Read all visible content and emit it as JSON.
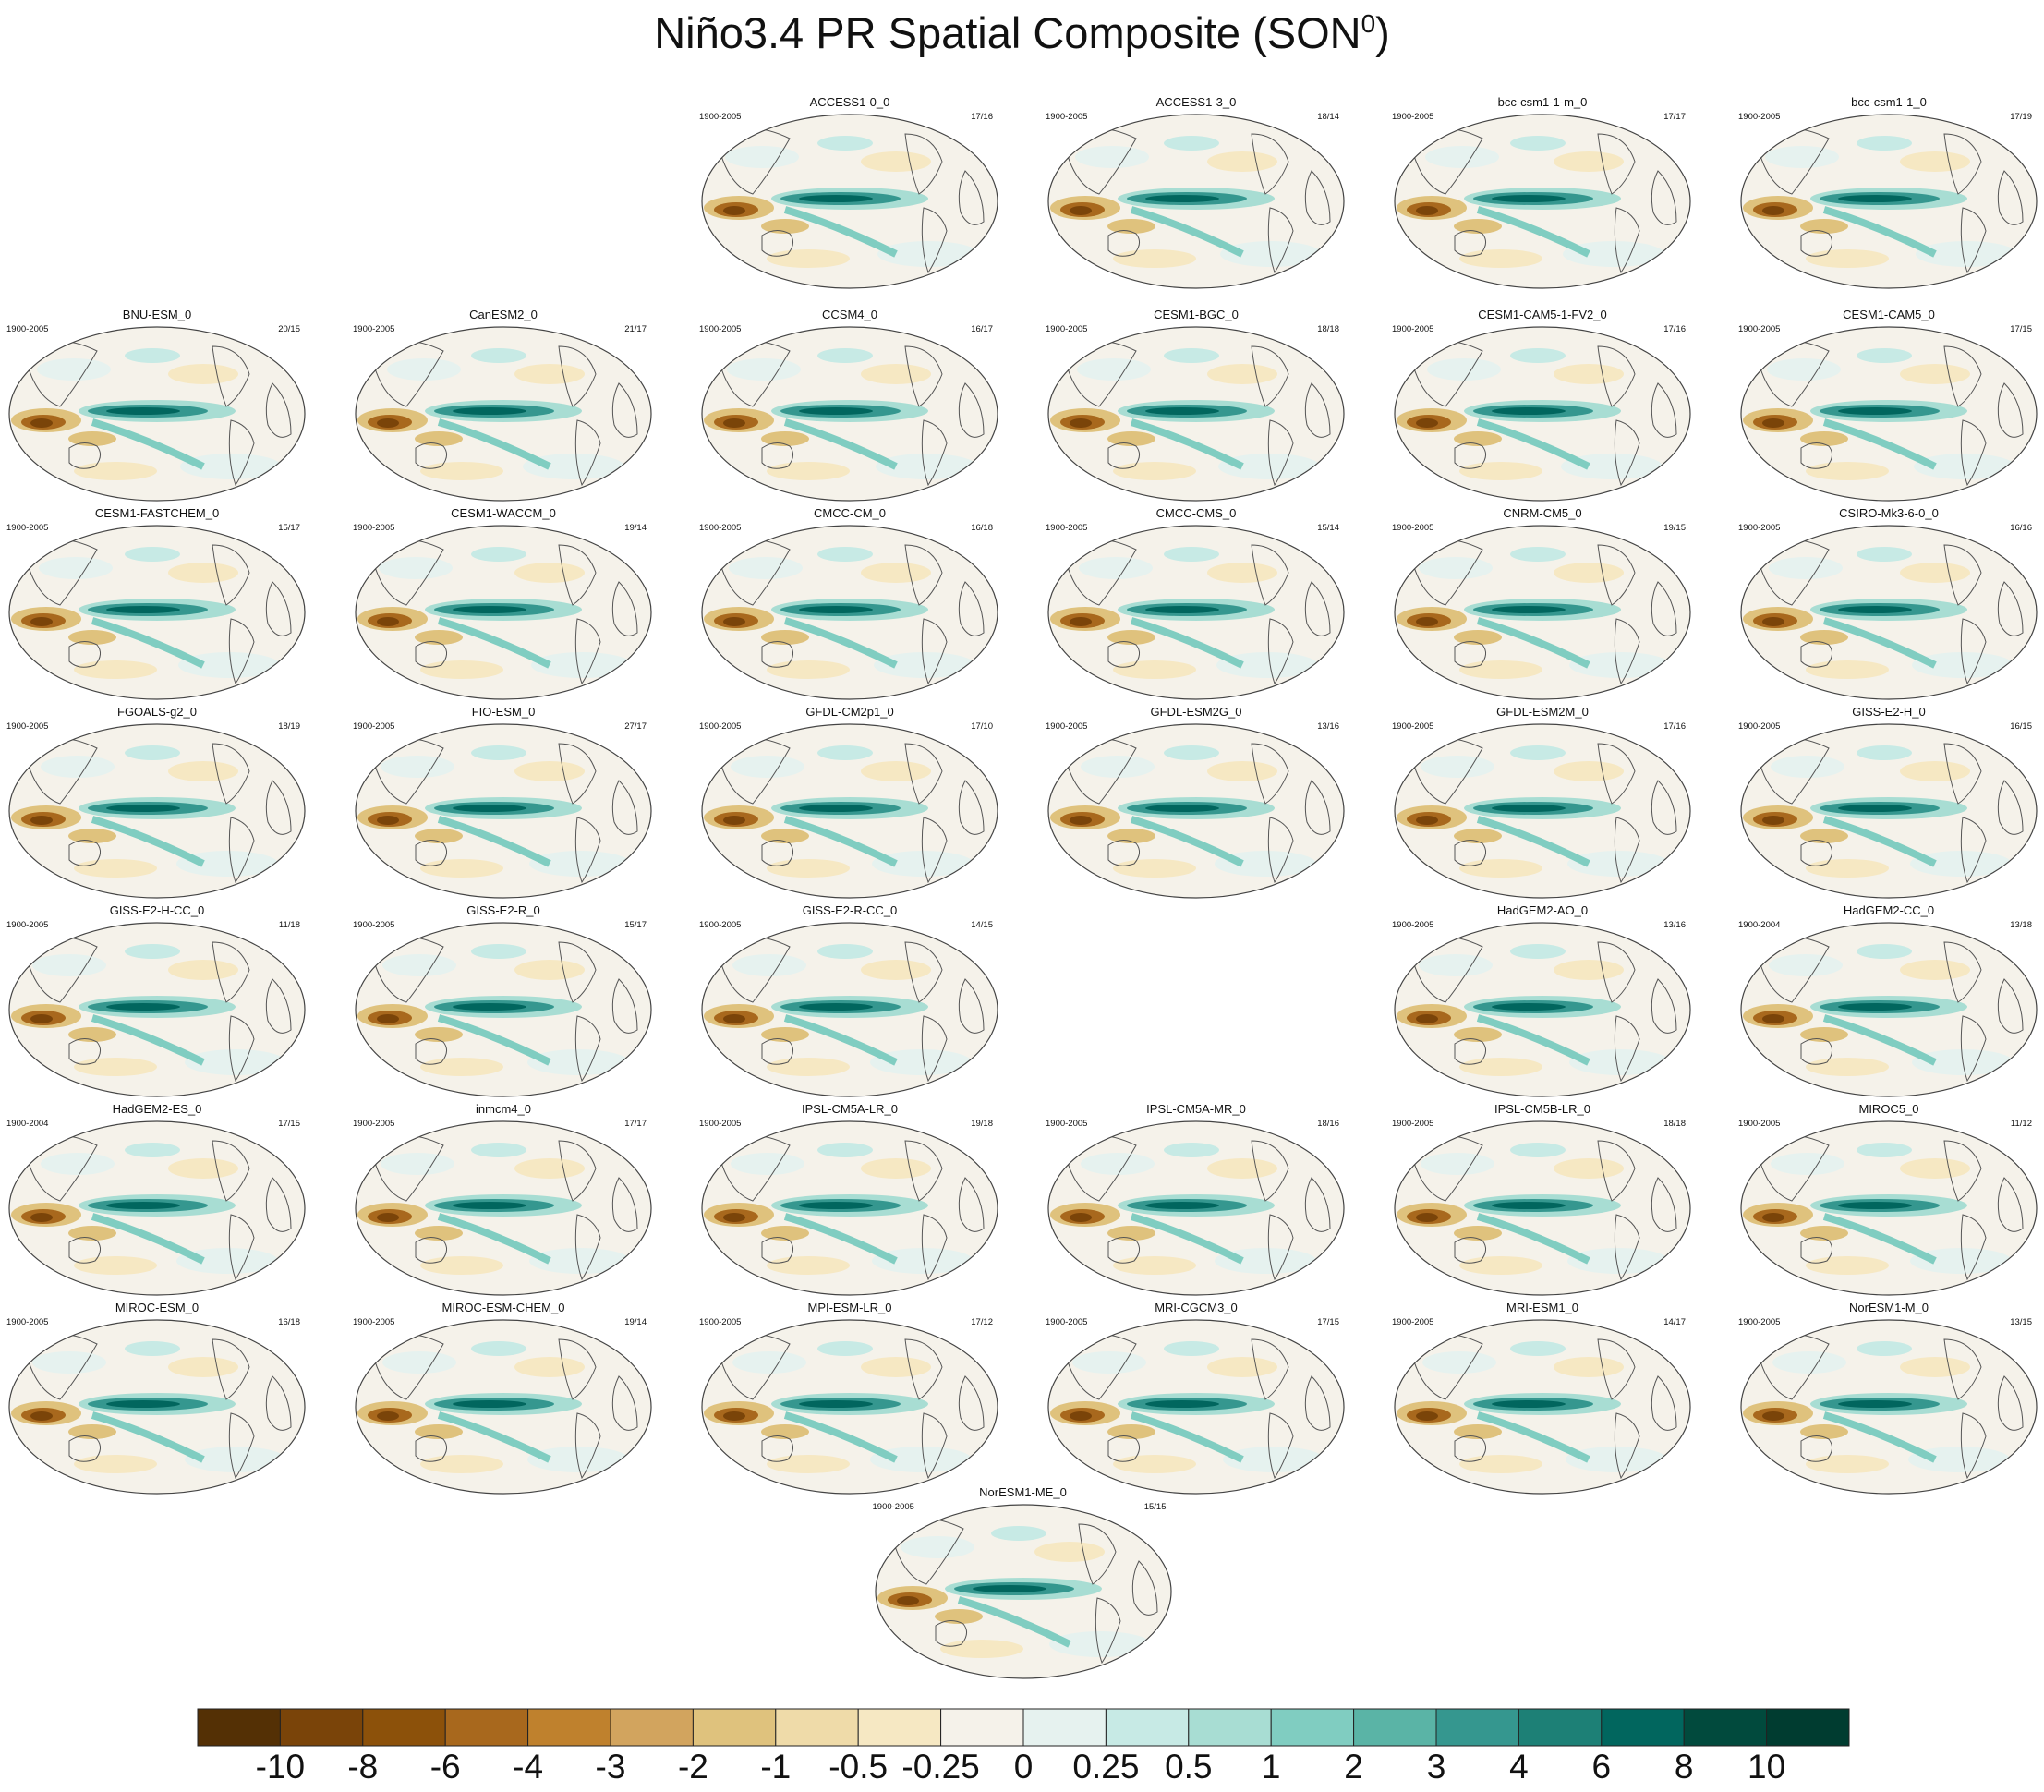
{
  "chart_data": {
    "type": "heatmap",
    "title": "Niño3.4 PR Spatial Composite (SON",
    "title_superscript": "0",
    "title_close": ")",
    "projection": "robinson-global-map",
    "colorbar": {
      "colors": [
        "#543005",
        "#7a4409",
        "#8c510a",
        "#a8681d",
        "#bf812d",
        "#d2a45e",
        "#dfc27d",
        "#efdba9",
        "#f6e8c3",
        "#f5f2ea",
        "#e6f2ef",
        "#c7eae5",
        "#a8ddd3",
        "#80cdc1",
        "#5ab4a6",
        "#35978f",
        "#1d8076",
        "#01665e",
        "#014a3d",
        "#003c30"
      ],
      "tick_labels": [
        "-10",
        "-8",
        "-6",
        "-4",
        "-3",
        "-2",
        "-1",
        "-0.5",
        "-0.25",
        "0",
        "0.25",
        "0.5",
        "1",
        "2",
        "3",
        "4",
        "6",
        "8",
        "10"
      ]
    },
    "panels": [
      {
        "name": "ACCESS1-0_0",
        "years": "1900-2005",
        "count": "17/16",
        "row": 0,
        "col": 2
      },
      {
        "name": "ACCESS1-3_0",
        "years": "1900-2005",
        "count": "18/14",
        "row": 0,
        "col": 3
      },
      {
        "name": "bcc-csm1-1-m_0",
        "years": "1900-2005",
        "count": "17/17",
        "row": 0,
        "col": 4
      },
      {
        "name": "bcc-csm1-1_0",
        "years": "1900-2005",
        "count": "17/19",
        "row": 0,
        "col": 5
      },
      {
        "name": "BNU-ESM_0",
        "years": "1900-2005",
        "count": "20/15",
        "row": 1,
        "col": 0
      },
      {
        "name": "CanESM2_0",
        "years": "1900-2005",
        "count": "21/17",
        "row": 1,
        "col": 1
      },
      {
        "name": "CCSM4_0",
        "years": "1900-2005",
        "count": "16/17",
        "row": 1,
        "col": 2
      },
      {
        "name": "CESM1-BGC_0",
        "years": "1900-2005",
        "count": "18/18",
        "row": 1,
        "col": 3
      },
      {
        "name": "CESM1-CAM5-1-FV2_0",
        "years": "1900-2005",
        "count": "17/16",
        "row": 1,
        "col": 4
      },
      {
        "name": "CESM1-CAM5_0",
        "years": "1900-2005",
        "count": "17/15",
        "row": 1,
        "col": 5
      },
      {
        "name": "CESM1-FASTCHEM_0",
        "years": "1900-2005",
        "count": "15/17",
        "row": 2,
        "col": 0
      },
      {
        "name": "CESM1-WACCM_0",
        "years": "1900-2005",
        "count": "19/14",
        "row": 2,
        "col": 1
      },
      {
        "name": "CMCC-CM_0",
        "years": "1900-2005",
        "count": "16/18",
        "row": 2,
        "col": 2
      },
      {
        "name": "CMCC-CMS_0",
        "years": "1900-2005",
        "count": "15/14",
        "row": 2,
        "col": 3
      },
      {
        "name": "CNRM-CM5_0",
        "years": "1900-2005",
        "count": "19/15",
        "row": 2,
        "col": 4
      },
      {
        "name": "CSIRO-Mk3-6-0_0",
        "years": "1900-2005",
        "count": "16/16",
        "row": 2,
        "col": 5
      },
      {
        "name": "FGOALS-g2_0",
        "years": "1900-2005",
        "count": "18/19",
        "row": 3,
        "col": 0
      },
      {
        "name": "FIO-ESM_0",
        "years": "1900-2005",
        "count": "27/17",
        "row": 3,
        "col": 1
      },
      {
        "name": "GFDL-CM2p1_0",
        "years": "1900-2005",
        "count": "17/10",
        "row": 3,
        "col": 2
      },
      {
        "name": "GFDL-ESM2G_0",
        "years": "1900-2005",
        "count": "13/16",
        "row": 3,
        "col": 3
      },
      {
        "name": "GFDL-ESM2M_0",
        "years": "1900-2005",
        "count": "17/16",
        "row": 3,
        "col": 4
      },
      {
        "name": "GISS-E2-H_0",
        "years": "1900-2005",
        "count": "16/15",
        "row": 3,
        "col": 5
      },
      {
        "name": "GISS-E2-H-CC_0",
        "years": "1900-2005",
        "count": "11/18",
        "row": 4,
        "col": 0
      },
      {
        "name": "GISS-E2-R_0",
        "years": "1900-2005",
        "count": "15/17",
        "row": 4,
        "col": 1
      },
      {
        "name": "GISS-E2-R-CC_0",
        "years": "1900-2005",
        "count": "14/15",
        "row": 4,
        "col": 2
      },
      {
        "name": "HadGEM2-AO_0",
        "years": "1900-2005",
        "count": "13/16",
        "row": 4,
        "col": 4
      },
      {
        "name": "HadGEM2-CC_0",
        "years": "1900-2004",
        "count": "13/18",
        "row": 4,
        "col": 5
      },
      {
        "name": "HadGEM2-ES_0",
        "years": "1900-2004",
        "count": "17/15",
        "row": 5,
        "col": 0
      },
      {
        "name": "inmcm4_0",
        "years": "1900-2005",
        "count": "17/17",
        "row": 5,
        "col": 1
      },
      {
        "name": "IPSL-CM5A-LR_0",
        "years": "1900-2005",
        "count": "19/18",
        "row": 5,
        "col": 2
      },
      {
        "name": "IPSL-CM5A-MR_0",
        "years": "1900-2005",
        "count": "18/16",
        "row": 5,
        "col": 3
      },
      {
        "name": "IPSL-CM5B-LR_0",
        "years": "1900-2005",
        "count": "18/18",
        "row": 5,
        "col": 4
      },
      {
        "name": "MIROC5_0",
        "years": "1900-2005",
        "count": "11/12",
        "row": 5,
        "col": 5
      },
      {
        "name": "MIROC-ESM_0",
        "years": "1900-2005",
        "count": "16/18",
        "row": 6,
        "col": 0
      },
      {
        "name": "MIROC-ESM-CHEM_0",
        "years": "1900-2005",
        "count": "19/14",
        "row": 6,
        "col": 1
      },
      {
        "name": "MPI-ESM-LR_0",
        "years": "1900-2005",
        "count": "17/12",
        "row": 6,
        "col": 2
      },
      {
        "name": "MRI-CGCM3_0",
        "years": "1900-2005",
        "count": "17/15",
        "row": 6,
        "col": 3
      },
      {
        "name": "MRI-ESM1_0",
        "years": "1900-2005",
        "count": "14/17",
        "row": 6,
        "col": 4
      },
      {
        "name": "NorESM1-M_0",
        "years": "1900-2005",
        "count": "13/15",
        "row": 6,
        "col": 5
      },
      {
        "name": "NorESM1-ME_0",
        "years": "1900-2005",
        "count": "15/15",
        "row": 7,
        "col": 2.5
      }
    ]
  }
}
